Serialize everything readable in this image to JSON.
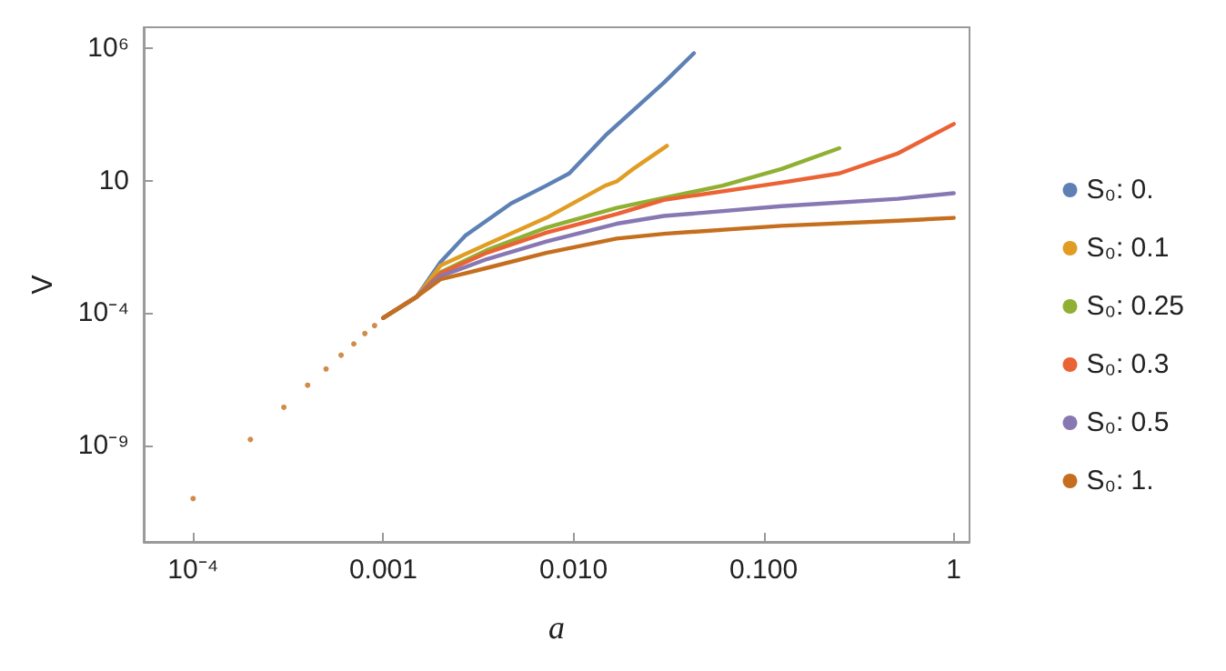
{
  "chart_data": {
    "type": "line",
    "xlabel": "a",
    "ylabel": "V",
    "log": "xy",
    "grid": false,
    "legend": "right",
    "marker": "none",
    "line_style": "solid",
    "xlim": [
      5.5e-05,
      1.21
    ],
    "ylim": [
      2.3e-13,
      6300000.0
    ],
    "xticks": [
      {
        "value": 0.0001,
        "label": "10⁻⁴"
      },
      {
        "value": 0.001,
        "label": "0.001"
      },
      {
        "value": 0.01,
        "label": "0.010"
      },
      {
        "value": 0.1,
        "label": "0.100"
      },
      1
    ],
    "yticks": [
      {
        "value": 1e-09,
        "label": "10⁻⁹"
      },
      {
        "value": 0.0001,
        "label": "10⁻⁴"
      },
      10,
      {
        "value": 1000000,
        "label": "10⁶"
      }
    ],
    "series": [
      {
        "type": "scatter",
        "marker": "circle",
        "color": "#c56f1e",
        "x": [
          0.0001,
          0.0002,
          0.0003,
          0.0004,
          0.0005,
          0.0006,
          0.0007,
          0.0008,
          0.0009
        ],
        "values": [
          1e-11,
          1.7e-09,
          2.8e-08,
          1.9e-07,
          7.8e-07,
          2.6e-06,
          6.9e-06,
          1.7e-05,
          3.4e-05
        ]
      },
      {
        "name": "S₀: 0.",
        "color": "#5e81b5",
        "x": [
          0.001,
          0.0015,
          0.002,
          0.0027,
          0.0047,
          0.0072,
          0.0095,
          0.0147,
          0.0299,
          0.043
        ],
        "values": [
          6.6e-05,
          0.00042,
          0.0085,
          0.085,
          1.4,
          6.6,
          19,
          510,
          51000,
          660000
        ]
      },
      {
        "name": "S₀: 0.1",
        "color": "#e19c24",
        "x": [
          0.001,
          0.0015,
          0.002,
          0.0035,
          0.0072,
          0.0147,
          0.0169,
          0.021,
          0.031
        ],
        "values": [
          6.6e-05,
          0.00042,
          0.0063,
          0.04,
          0.4,
          6.6,
          9.5,
          31,
          210
        ]
      },
      {
        "name": "S₀: 0.25",
        "color": "#8fb032",
        "x": [
          0.001,
          0.0015,
          0.002,
          0.0035,
          0.0072,
          0.0169,
          0.061,
          0.124,
          0.25
        ],
        "values": [
          6.6e-05,
          0.00042,
          0.0035,
          0.024,
          0.17,
          0.95,
          6.6,
          28,
          170
        ]
      },
      {
        "name": "S₀: 0.3",
        "color": "#eb6235",
        "x": [
          0.001,
          0.0015,
          0.002,
          0.0035,
          0.0072,
          0.0169,
          0.0299,
          0.124,
          0.25,
          0.51,
          1.0
        ],
        "values": [
          6.6e-05,
          0.00042,
          0.0032,
          0.019,
          0.11,
          0.56,
          1.9,
          8.5,
          19,
          110,
          1400
        ]
      },
      {
        "name": "S₀: 0.5",
        "color": "#8778b3",
        "x": [
          0.001,
          0.0015,
          0.002,
          0.0035,
          0.0072,
          0.0169,
          0.0299,
          0.124,
          0.51,
          1.0
        ],
        "values": [
          6.6e-05,
          0.00042,
          0.0025,
          0.011,
          0.051,
          0.24,
          0.47,
          1.1,
          2.1,
          3.4
        ]
      },
      {
        "name": "S₀: 1.",
        "color": "#c56f1e",
        "x": [
          0.001,
          0.0015,
          0.002,
          0.0035,
          0.0072,
          0.0169,
          0.0299,
          0.124,
          0.51,
          1.0
        ],
        "values": [
          6.6e-05,
          0.00042,
          0.0019,
          0.0051,
          0.019,
          0.066,
          0.1,
          0.2,
          0.31,
          0.4
        ]
      }
    ]
  }
}
